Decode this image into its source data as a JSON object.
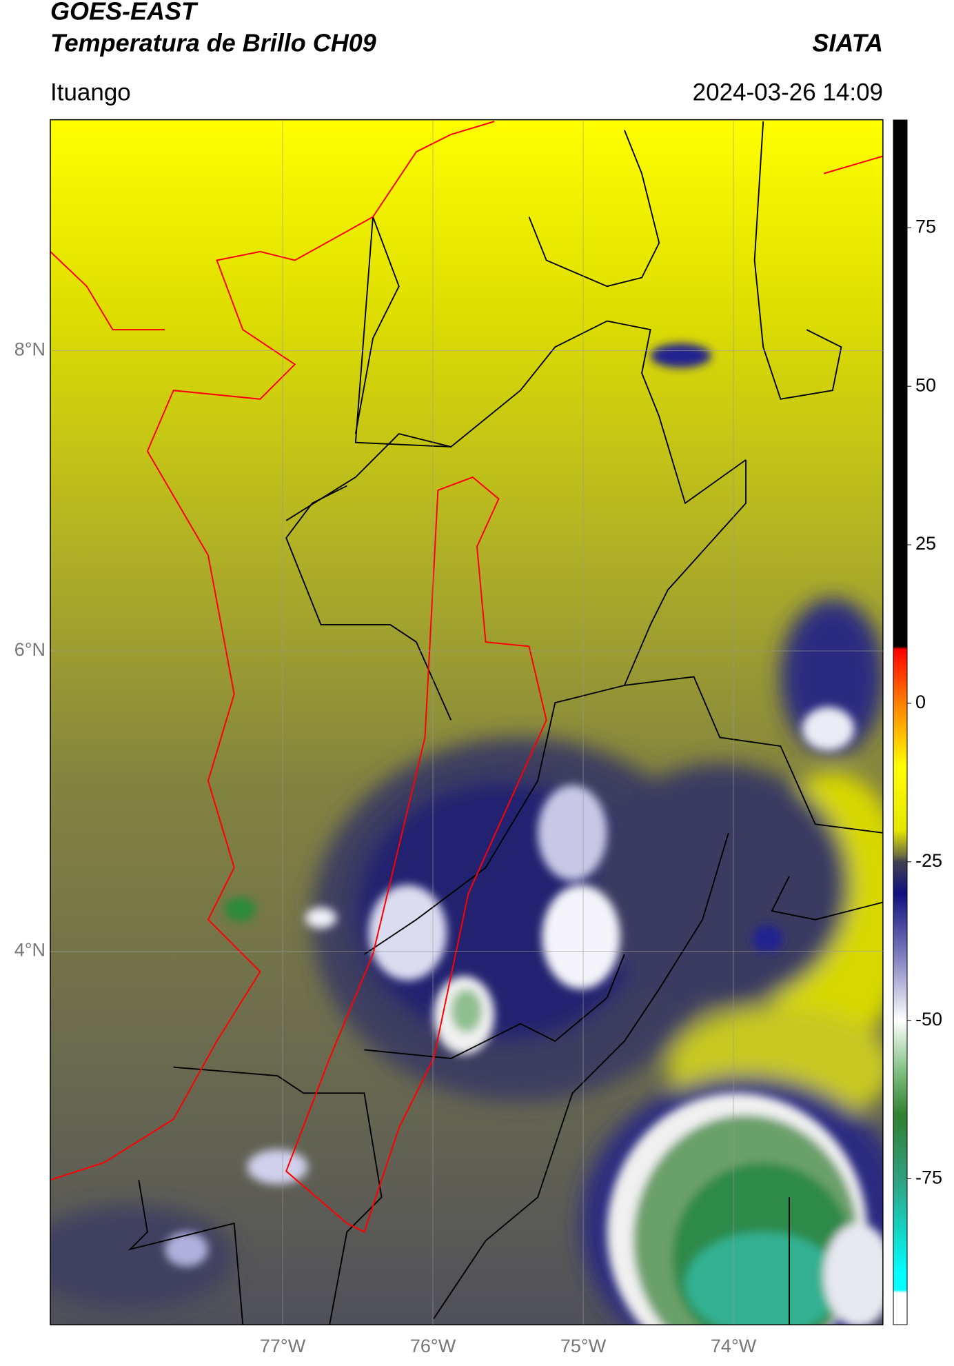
{
  "header": {
    "title": "GOES-EAST",
    "subtitle": "Temperatura de Brillo CH09",
    "source": "SIATA",
    "region": "Ituango",
    "datetime": "2024-03-26 14:09"
  },
  "map": {
    "latlim": [
      1.513,
      9.536
    ],
    "lonlim": [
      -78.546,
      -73.005
    ],
    "grid": true,
    "latticks": [
      {
        "value": 8,
        "label": "8°N"
      },
      {
        "value": 6,
        "label": "6°N"
      },
      {
        "value": 4,
        "label": "4°N"
      }
    ],
    "lonticks": [
      {
        "value": -77,
        "label": "77°W"
      },
      {
        "value": -76,
        "label": "76°W"
      },
      {
        "value": -75,
        "label": "75°W"
      },
      {
        "value": -74,
        "label": "74°W"
      }
    ]
  },
  "colorbar": {
    "lim": [
      -98,
      92
    ],
    "ticks": [
      75,
      50,
      25,
      0,
      -25,
      -50,
      -75
    ],
    "colormap": [
      {
        "value": 92,
        "color": "#000000"
      },
      {
        "value": 9,
        "color": "#000000"
      },
      {
        "value": 8.5,
        "color": "#ff0000"
      },
      {
        "value": 0,
        "color": "#ff8000"
      },
      {
        "value": -10,
        "color": "#ffff00"
      },
      {
        "value": -20,
        "color": "#e6e600"
      },
      {
        "value": -24,
        "color": "#707040"
      },
      {
        "value": -25,
        "color": "#404050"
      },
      {
        "value": -30,
        "color": "#101080"
      },
      {
        "value": -40,
        "color": "#8080c0"
      },
      {
        "value": -50,
        "color": "#ffffff"
      },
      {
        "value": -58,
        "color": "#80c080"
      },
      {
        "value": -65,
        "color": "#308030"
      },
      {
        "value": -75,
        "color": "#30a080"
      },
      {
        "value": -90,
        "color": "#00ffff"
      },
      {
        "value": -92.5,
        "color": "#00ffff"
      },
      {
        "value": -93,
        "color": "#ffffff"
      },
      {
        "value": -98,
        "color": "#ffffff"
      }
    ]
  }
}
